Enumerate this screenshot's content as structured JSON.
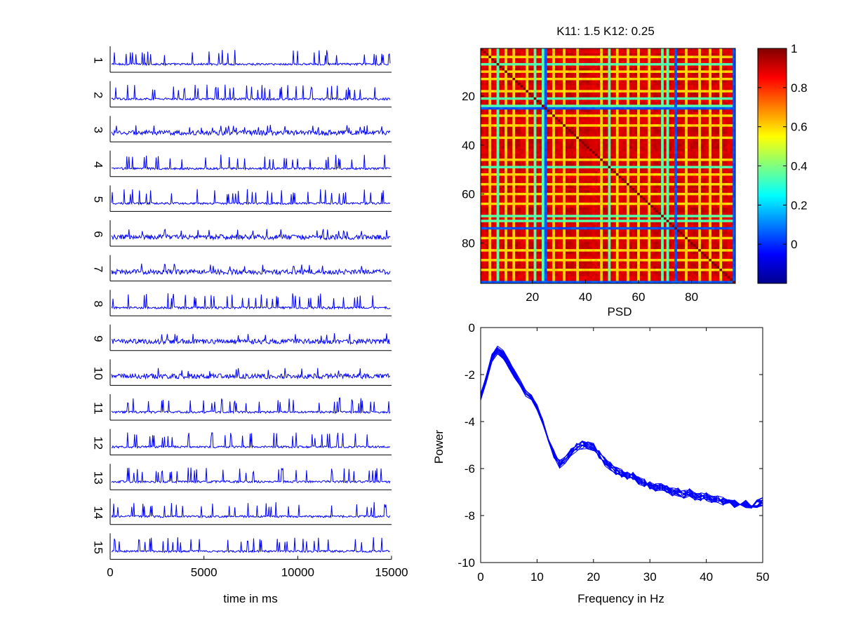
{
  "chart_data": [
    {
      "type": "line",
      "title": "",
      "xlabel": "time in ms",
      "xlim": [
        0,
        15000
      ],
      "x_ticks": [
        0,
        5000,
        10000,
        15000
      ],
      "x_tick_labels": [
        "0",
        "5000",
        "10000",
        "15000"
      ],
      "series_color": "#0000ff",
      "traces": [
        {
          "label": "1",
          "style": "spiking"
        },
        {
          "label": "2",
          "style": "spiking"
        },
        {
          "label": "3",
          "style": "noisy"
        },
        {
          "label": "4",
          "style": "spiking"
        },
        {
          "label": "5",
          "style": "spiking"
        },
        {
          "label": "6",
          "style": "noisy"
        },
        {
          "label": "7",
          "style": "noisy"
        },
        {
          "label": "8",
          "style": "spiking"
        },
        {
          "label": "9",
          "style": "noisy"
        },
        {
          "label": "10",
          "style": "noisy"
        },
        {
          "label": "11",
          "style": "spiking"
        },
        {
          "label": "12",
          "style": "spiking"
        },
        {
          "label": "13",
          "style": "spiking"
        },
        {
          "label": "14",
          "style": "spiking"
        },
        {
          "label": "15",
          "style": "spiking"
        }
      ]
    },
    {
      "type": "heatmap",
      "title": "K11: 1.5 K12: 0.25",
      "xlabel": "PSD",
      "ylabel": "",
      "size": 96,
      "x_ticks": [
        20,
        40,
        60,
        80
      ],
      "y_ticks": [
        20,
        40,
        60,
        80
      ],
      "low_indices": [
        24,
        73,
        95
      ],
      "mid_indices": [
        6,
        20,
        23,
        48,
        68,
        70
      ],
      "yellow_indices": [
        3,
        9,
        12,
        17,
        27,
        31,
        36,
        45,
        51,
        55,
        59,
        63,
        77,
        82,
        86,
        90
      ],
      "colormap": "jet",
      "colorbar": {
        "range": [
          -0.2,
          1
        ],
        "ticks": [
          0,
          0.2,
          0.4,
          0.6,
          0.8,
          1
        ],
        "tick_labels": [
          "0",
          "0.2",
          "0.4",
          "0.6",
          "0.8",
          "1"
        ]
      }
    },
    {
      "type": "line",
      "title": "",
      "xlabel": "Frequency in Hz",
      "ylabel": "Power",
      "xlim": [
        0,
        50
      ],
      "ylim": [
        -10,
        0
      ],
      "x_ticks": [
        0,
        10,
        20,
        30,
        40,
        50
      ],
      "y_ticks": [
        0,
        -2,
        -4,
        -6,
        -8,
        -10
      ],
      "series_color": "#0000ff",
      "x": [
        0,
        1,
        2,
        3,
        4,
        5,
        6,
        7,
        8,
        9,
        10,
        11,
        12,
        13,
        14,
        15,
        16,
        17,
        18,
        19,
        20,
        21,
        22,
        23,
        24,
        25,
        26,
        27,
        28,
        29,
        30,
        31,
        32,
        33,
        34,
        35,
        36,
        37,
        38,
        39,
        40,
        41,
        42,
        43,
        44,
        45,
        46,
        47,
        48,
        49,
        50
      ],
      "mean_curve": [
        -3.0,
        -2.2,
        -1.3,
        -1.0,
        -1.2,
        -1.6,
        -2.0,
        -2.4,
        -2.8,
        -3.0,
        -3.4,
        -4.0,
        -4.8,
        -5.4,
        -5.8,
        -5.6,
        -5.3,
        -5.1,
        -5.0,
        -5.0,
        -5.1,
        -5.4,
        -5.7,
        -5.9,
        -6.1,
        -6.2,
        -6.3,
        -6.3,
        -6.5,
        -6.6,
        -6.7,
        -6.8,
        -6.8,
        -6.9,
        -7.0,
        -7.0,
        -7.1,
        -7.0,
        -7.2,
        -7.2,
        -7.2,
        -7.3,
        -7.3,
        -7.4,
        -7.4,
        -7.5,
        -7.5,
        -7.5,
        -7.6,
        -7.5,
        -7.4
      ],
      "series_count": 15
    }
  ]
}
